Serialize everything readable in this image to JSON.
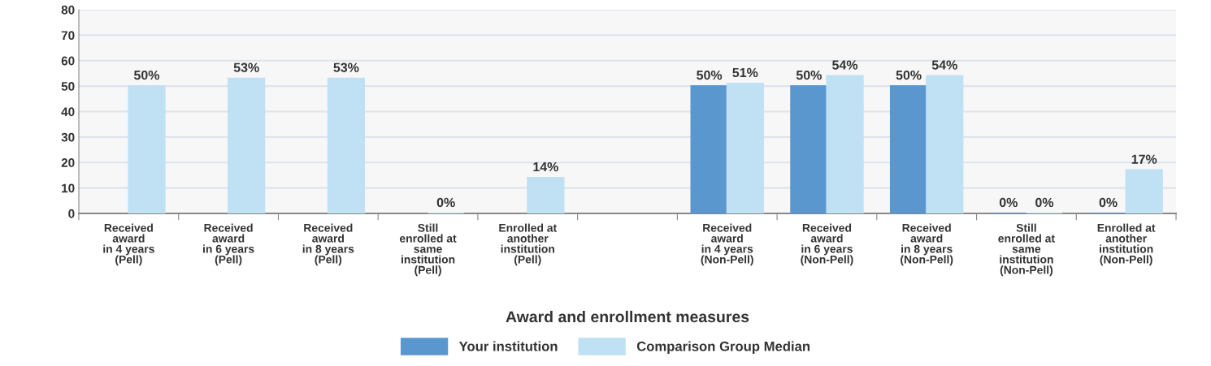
{
  "chart_data": {
    "type": "bar",
    "xlabel": "Award and enrollment measures",
    "categories": [
      "Received\naward\nin 4 years\n(Pell)",
      "Received\naward\nin 6 years\n(Pell)",
      "Received\naward\nin 8 years\n(Pell)",
      "Still\nenrolled at\nsame\ninstitution\n(Pell)",
      "Enrolled at\nanother\ninstitution\n(Pell)",
      null,
      "Received\naward\nin 4 years\n(Non-Pell)",
      "Received\naward\nin 6 years\n(Non-Pell)",
      "Received\naward\nin 8 years\n(Non-Pell)",
      "Still\nenrolled at\nsame\ninstitution\n(Non-Pell)",
      "Enrolled at\nanother\ninstitution\n(Non-Pell)"
    ],
    "series": [
      {
        "name": "Your institution",
        "color": "#5b97cf",
        "values": [
          null,
          null,
          null,
          null,
          null,
          null,
          50,
          50,
          50,
          0,
          0
        ],
        "value_labels": [
          null,
          null,
          null,
          null,
          null,
          null,
          "50%",
          "50%",
          "50%",
          "0%",
          "0%"
        ]
      },
      {
        "name": "Comparison Group Median",
        "color": "#c0e0f4",
        "values": [
          50,
          53,
          53,
          0,
          14,
          null,
          51,
          54,
          54,
          0,
          17
        ],
        "value_labels": [
          "50%",
          "53%",
          "53%",
          "0%",
          "14%",
          null,
          "51%",
          "54%",
          "54%",
          "0%",
          "17%"
        ]
      }
    ],
    "ylim": [
      0,
      80
    ],
    "yticks": [
      0,
      10,
      20,
      30,
      40,
      50,
      60,
      70,
      80
    ],
    "grid": "y",
    "legend": "bottom"
  }
}
